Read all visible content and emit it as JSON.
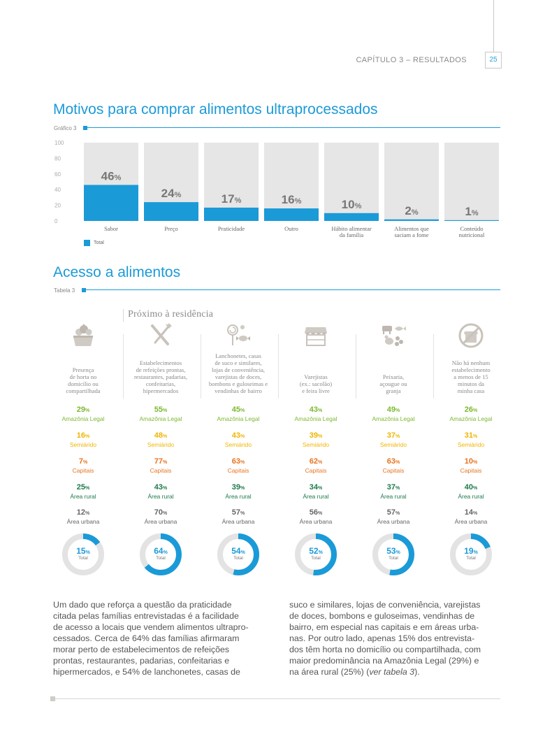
{
  "header": {
    "chapter": "CAPÍTULO 3 – RESULTADOS",
    "page_number": "25"
  },
  "chart_section": {
    "title": "Motivos para comprar alimentos ultraprocessados",
    "figure_label": "Gráfico 3",
    "legend": "Total"
  },
  "chart_data": {
    "type": "bar",
    "categories": [
      "Sabor",
      "Preço",
      "Praticidade",
      "Outro",
      "Hábito alimentar da família",
      "Alimentos que saciam a fome",
      "Conteúdo nutricional"
    ],
    "category_lines": [
      [
        "Sabor"
      ],
      [
        "Preço"
      ],
      [
        "Praticidade"
      ],
      [
        "Outro"
      ],
      [
        "Hábito alimentar",
        "da família"
      ],
      [
        "Alimentos que",
        "saciam a fome"
      ],
      [
        "Conteúdo",
        "nutricional"
      ]
    ],
    "series": [
      {
        "name": "Total",
        "values": [
          46,
          24,
          17,
          16,
          10,
          2,
          1
        ]
      }
    ],
    "value_labels": [
      "46",
      "24",
      "17",
      "16",
      "10",
      "2",
      "1"
    ],
    "value_suffix": "%",
    "y_ticks": [
      "100",
      "80",
      "60",
      "40",
      "20",
      "0"
    ],
    "ylim": [
      0,
      100
    ],
    "grid": false,
    "legend_position": "bottom-left",
    "colors": {
      "bar": "#1b9ad8",
      "background_bar": "#e6e6e6",
      "value_label": "#777777"
    }
  },
  "table_section": {
    "title": "Acesso a alimentos",
    "figure_label": "Tabela 3",
    "group_label": "Próximo à residência",
    "suffix": "%",
    "labels": {
      "amazonia": "Amazônia Legal",
      "semiarido": "Semiárido",
      "capitais": "Capitais",
      "rural": "Área rural",
      "urbana": "Área urbana",
      "total": "Total"
    },
    "colors": {
      "amazonia": "#7cb82f",
      "semiarido": "#f0b400",
      "capitais": "#e8731e",
      "rural": "#1e7a4a",
      "urbana": "#666666",
      "donut": "#1b9ad8",
      "donut_track": "#e3e3e3"
    },
    "columns": [
      {
        "icon": "vegetable-basket-icon",
        "description": [
          "Presença",
          "de horta no",
          "domicílio ou",
          "compartilhada"
        ],
        "amazonia": "29",
        "semiarido": "16",
        "capitais": "7",
        "rural": "25",
        "urbana": "12",
        "total": "15",
        "total_value": 15
      },
      {
        "icon": "fork-knife-icon",
        "description": [
          "Estabelecimentos",
          "de refeições prontas,",
          "restaurantes, padarias,",
          "confeitarias,",
          "hipermercados"
        ],
        "amazonia": "55",
        "semiarido": "48",
        "capitais": "77",
        "rural": "43",
        "urbana": "70",
        "total": "64",
        "total_value": 64
      },
      {
        "icon": "candy-icon",
        "description": [
          "Lanchonetes, casas",
          "de suco e similares,",
          "lojas de conveniência,",
          "varejistas de doces,",
          "bombons e guloseimas e",
          "vendinhas de bairro"
        ],
        "amazonia": "45",
        "semiarido": "43",
        "capitais": "63",
        "rural": "39",
        "urbana": "57",
        "total": "54",
        "total_value": 54
      },
      {
        "icon": "market-stall-icon",
        "description": [
          "Varejistas",
          "(ex.: sacolão)",
          "e feira livre"
        ],
        "amazonia": "43",
        "semiarido": "39",
        "capitais": "62",
        "rural": "34",
        "urbana": "56",
        "total": "52",
        "total_value": 52
      },
      {
        "icon": "farm-animals-icon",
        "description": [
          "Peixaria,",
          "açougue ou",
          "granja"
        ],
        "amazonia": "49",
        "semiarido": "37",
        "capitais": "63",
        "rural": "37",
        "urbana": "57",
        "total": "53",
        "total_value": 53
      },
      {
        "icon": "no-store-icon",
        "description": [
          "Não há nenhum",
          "estabelecimento",
          "a menos de 15",
          "minutos da",
          "minha casa"
        ],
        "amazonia": "26",
        "semiarido": "31",
        "capitais": "10",
        "rural": "40",
        "urbana": "14",
        "total": "19",
        "total_value": 19
      }
    ]
  },
  "body_text": {
    "left_lines": [
      "Um dado que reforça a questão da praticidade",
      "citada pelas famílias entrevistadas é a facilidade",
      "de acesso a locais que vendem alimentos ultrapro-",
      "cessados. Cerca de 64% das famílias afirmaram",
      "morar perto de estabelecimentos de refeições",
      "prontas, restaurantes, padarias, confeitarias e",
      "hipermercados, e 54% de lanchonetes, casas de"
    ],
    "right_lines": [
      "suco e similares, lojas de conveniência, varejistas",
      "de doces, bombons e guloseimas, vendinhas de",
      "bairro, em especial nas capitais e em áreas urba-",
      "nas. Por outro lado, apenas 15% dos entrevista-",
      "dos têm horta no domicílio ou compartilhada, com",
      "maior predominância na Amazônia Legal (29%) e"
    ],
    "last_line_prefix": "na área rural (25%) (",
    "last_line_italic": "ver tabela 3",
    "last_line_suffix": ")."
  }
}
